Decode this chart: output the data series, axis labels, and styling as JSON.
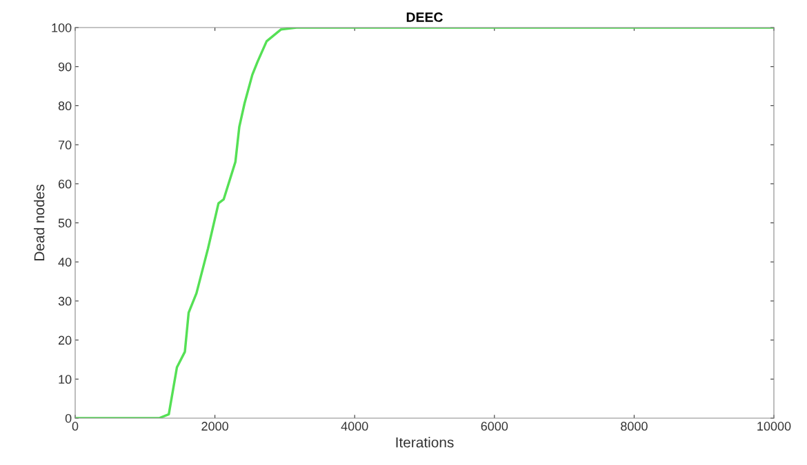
{
  "chart_data": {
    "type": "line",
    "title": "DEEC",
    "xlabel": "Iterations",
    "ylabel": "Dead nodes",
    "series": [
      {
        "color": "#55e055",
        "x": [
          0,
          1200,
          1340,
          1456,
          1570,
          1624,
          1736,
          1902,
          2051,
          2125,
          2293,
          2349,
          2424,
          2535,
          2609,
          2740,
          2944,
          3167,
          10000
        ],
        "values": [
          0,
          0,
          1,
          13,
          17,
          27,
          32,
          43.5,
          55,
          56,
          65.6,
          74.6,
          80.6,
          87.9,
          91.2,
          96.5,
          99.5,
          100,
          100
        ]
      }
    ],
    "xlim": [
      0,
      10000
    ],
    "xticks": [
      0,
      2000,
      4000,
      6000,
      8000,
      10000
    ],
    "ylim": [
      0,
      100
    ],
    "yticks": [
      0,
      10,
      20,
      30,
      40,
      50,
      60,
      70,
      80,
      90,
      100
    ],
    "grid": false,
    "legend": false
  }
}
